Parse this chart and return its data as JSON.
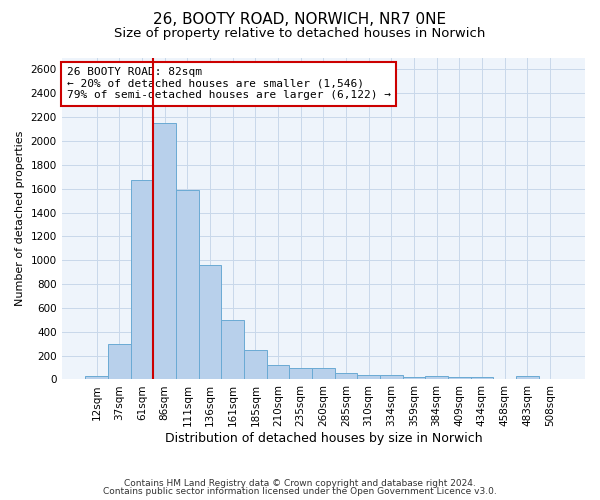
{
  "title_line1": "26, BOOTY ROAD, NORWICH, NR7 0NE",
  "title_line2": "Size of property relative to detached houses in Norwich",
  "xlabel": "Distribution of detached houses by size in Norwich",
  "ylabel": "Number of detached properties",
  "categories": [
    "12sqm",
    "37sqm",
    "61sqm",
    "86sqm",
    "111sqm",
    "136sqm",
    "161sqm",
    "185sqm",
    "210sqm",
    "235sqm",
    "260sqm",
    "285sqm",
    "310sqm",
    "334sqm",
    "359sqm",
    "384sqm",
    "409sqm",
    "434sqm",
    "458sqm",
    "483sqm",
    "508sqm"
  ],
  "values": [
    25,
    300,
    1670,
    2150,
    1590,
    960,
    500,
    250,
    120,
    100,
    100,
    50,
    35,
    35,
    20,
    30,
    20,
    20,
    5,
    25,
    0
  ],
  "bar_color": "#b8d0eb",
  "bar_edgecolor": "#6aaad4",
  "bar_linewidth": 0.7,
  "grid_color": "#c8d8ea",
  "bg_color": "#eef4fb",
  "red_line_color": "#cc0000",
  "annotation_text": "26 BOOTY ROAD: 82sqm\n← 20% of detached houses are smaller (1,546)\n79% of semi-detached houses are larger (6,122) →",
  "annotation_box_color": "white",
  "annotation_box_edgecolor": "#cc0000",
  "annotation_fontsize": 8.0,
  "footer_line1": "Contains HM Land Registry data © Crown copyright and database right 2024.",
  "footer_line2": "Contains public sector information licensed under the Open Government Licence v3.0.",
  "ylim": [
    0,
    2700
  ],
  "yticks": [
    0,
    200,
    400,
    600,
    800,
    1000,
    1200,
    1400,
    1600,
    1800,
    2000,
    2200,
    2400,
    2600
  ],
  "title_fontsize": 11,
  "subtitle_fontsize": 9.5,
  "xlabel_fontsize": 9,
  "ylabel_fontsize": 8,
  "tick_fontsize": 7.5
}
